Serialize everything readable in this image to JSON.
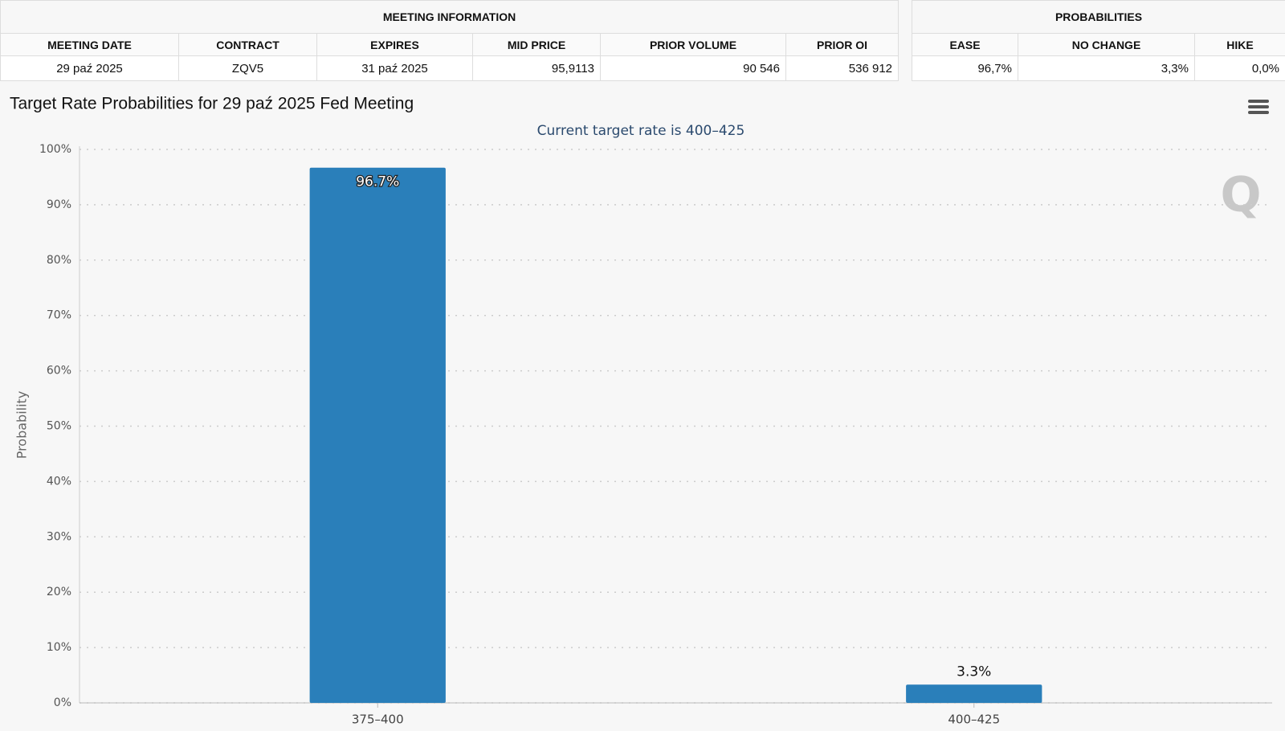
{
  "meeting_information": {
    "title": "MEETING INFORMATION",
    "headers": [
      "MEETING DATE",
      "CONTRACT",
      "EXPIRES",
      "MID PRICE",
      "PRIOR VOLUME",
      "PRIOR OI"
    ],
    "row": [
      "29 paź 2025",
      "ZQV5",
      "31 paź 2025",
      "95,9113",
      "90 546",
      "536 912"
    ]
  },
  "probabilities": {
    "title": "PROBABILITIES",
    "headers": [
      "EASE",
      "NO CHANGE",
      "HIKE"
    ],
    "row": [
      "96,7%",
      "3,3%",
      "0,0%"
    ]
  },
  "chart_data": {
    "type": "bar",
    "title": "Target Rate Probabilities for 29 paź 2025 Fed Meeting",
    "subtitle": "Current target rate is 400–425",
    "y_label": "Probability",
    "watermark": "Q",
    "categories": [
      "375–400",
      "400–425"
    ],
    "values": [
      96.7,
      3.3
    ],
    "value_labels": [
      "96.7%",
      "3.3%"
    ],
    "color": "#2a7fba",
    "ylim": [
      0,
      100
    ],
    "yticks": [
      {
        "value": 0,
        "label": "0%"
      },
      {
        "value": 10,
        "label": "10%"
      },
      {
        "value": 20,
        "label": "20%"
      },
      {
        "value": 30,
        "label": "30%"
      },
      {
        "value": 40,
        "label": "40%"
      },
      {
        "value": 50,
        "label": "50%"
      },
      {
        "value": 60,
        "label": "60%"
      },
      {
        "value": 70,
        "label": "70%"
      },
      {
        "value": 80,
        "label": "80%"
      },
      {
        "value": 90,
        "label": "90%"
      },
      {
        "value": 100,
        "label": "100%"
      }
    ],
    "grid": true
  }
}
